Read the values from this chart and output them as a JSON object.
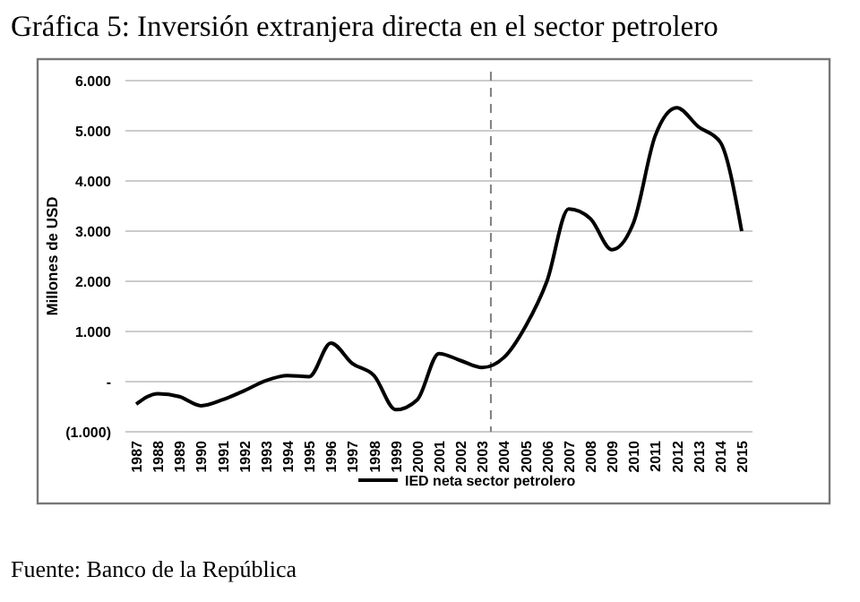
{
  "chart_data": {
    "type": "line",
    "title": "Gráfica 5: Inversión extranjera directa en el sector petrolero",
    "ylabel": "Millones de USD",
    "x": [
      1987,
      1988,
      1989,
      1990,
      1991,
      1992,
      1993,
      1994,
      1995,
      1996,
      1997,
      1998,
      1999,
      2000,
      2001,
      2002,
      2003,
      2004,
      2005,
      2006,
      2007,
      2008,
      2009,
      2010,
      2011,
      2012,
      2013,
      2014,
      2015
    ],
    "series": [
      {
        "name": "IED neta sector petrolero",
        "color": "#000000",
        "values": [
          -450,
          -240,
          -300,
          -480,
          -360,
          -180,
          20,
          120,
          100,
          770,
          360,
          120,
          -560,
          -360,
          560,
          420,
          280,
          480,
          1100,
          2010,
          3440,
          3250,
          2630,
          3170,
          4900,
          5460,
          5080,
          4780,
          3000
        ]
      }
    ],
    "xlim": [
      1986.5,
      2015.5
    ],
    "xticks": [
      1987,
      1988,
      1989,
      1990,
      1991,
      1992,
      1993,
      1994,
      1995,
      1996,
      1997,
      1998,
      1999,
      2000,
      2001,
      2002,
      2003,
      2004,
      2005,
      2006,
      2007,
      2008,
      2009,
      2010,
      2011,
      2012,
      2013,
      2014,
      2015
    ],
    "ylim": [
      -1000,
      6000
    ],
    "yticks": [
      {
        "value": -1000,
        "label": "(1.000)"
      },
      {
        "value": 0,
        "label": "-"
      },
      {
        "value": 1000,
        "label": "1.000"
      },
      {
        "value": 2000,
        "label": "2.000"
      },
      {
        "value": 3000,
        "label": "3.000"
      },
      {
        "value": 4000,
        "label": "4.000"
      },
      {
        "value": 5000,
        "label": "5.000"
      },
      {
        "value": 6000,
        "label": "6.000"
      }
    ],
    "grid": "y",
    "legend": "bottom",
    "marker": "none",
    "line_style": "solid",
    "ref_lines": [
      {
        "axis": "x",
        "value": 2003.4,
        "color": "#808080",
        "line_style": "dashed"
      }
    ],
    "annotations": [
      "Fuente: Banco de la República"
    ]
  }
}
